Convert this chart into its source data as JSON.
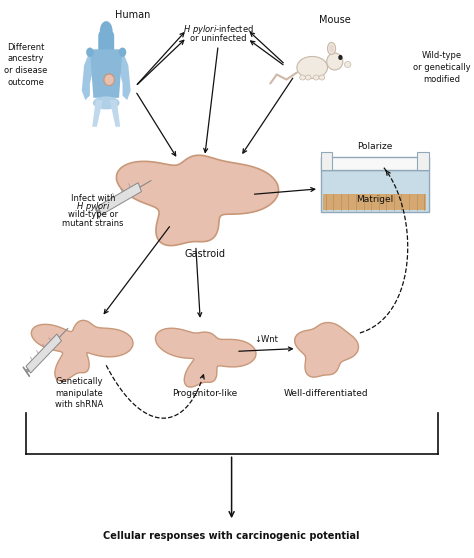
{
  "title": "Cellular responses with carcinogenic potential",
  "bg_color": "#ffffff",
  "gastroid_color": "#E8C0B0",
  "gastroid_outline": "#C89878",
  "human_color_top": "#7BAFD4",
  "human_color_bottom": "#D0E8F8",
  "mouse_color": "#F0EAE0",
  "mouse_outline": "#C8B8A8",
  "matrigel_fill": "#D4A870",
  "matrigel_water": "#C8DCE8",
  "matrigel_border": "#90A8B8",
  "arrow_color": "#111111",
  "text_color": "#111111",
  "label_human": "Human",
  "label_mouse": "Mouse",
  "label_wildtype": "Wild-type\nor genetically\nmodified",
  "label_ancestry": "Different\nancestry\nor disease\noutcome",
  "label_gastroid": "Gastroid",
  "label_polarize": "Polarize",
  "label_matrigel": "Matrigel",
  "label_genetically": "Genetically\nmanipulate\nwith shRNA",
  "label_progenitor": "Progenitor-like",
  "label_welldiff": "Well-differentiated",
  "label_wnt": "↓Wnt",
  "figsize": [
    4.74,
    5.58
  ],
  "dpi": 100
}
